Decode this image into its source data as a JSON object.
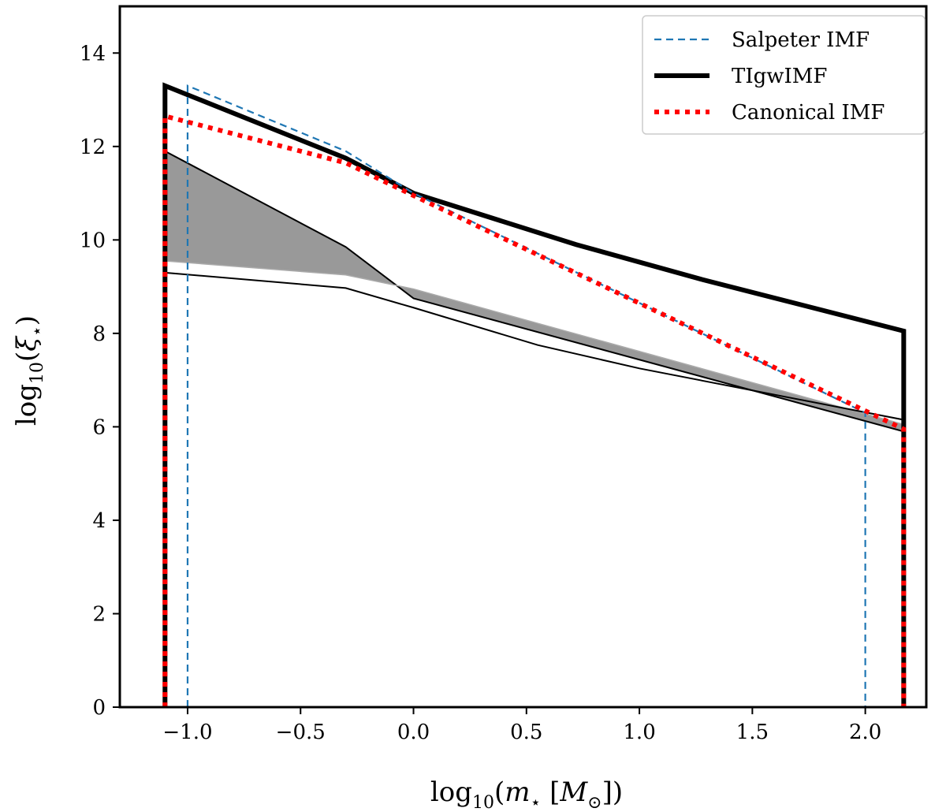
{
  "chart_data": {
    "type": "line",
    "xlabel": "log10(m⋆ [M⊙])",
    "ylabel": "log10(ξ⋆)",
    "xlim": [
      -1.3,
      2.27
    ],
    "ylim": [
      0,
      15
    ],
    "grid": false,
    "legend_position": "top-right",
    "x_ticks": [
      -1.0,
      -0.5,
      0.0,
      0.5,
      1.0,
      1.5,
      2.0
    ],
    "x_tick_labels": [
      "−1.0",
      "−0.5",
      "0.0",
      "0.5",
      "1.0",
      "1.5",
      "2.0"
    ],
    "y_ticks": [
      0,
      2,
      4,
      6,
      8,
      10,
      12,
      14
    ],
    "y_tick_labels": [
      "0",
      "2",
      "4",
      "6",
      "8",
      "10",
      "12",
      "14"
    ],
    "series": [
      {
        "name": "Salpeter IMF",
        "color": "#1f77b4",
        "style": "dashed",
        "points": [
          [
            -1.0,
            0
          ],
          [
            -1.0,
            13.3
          ],
          [
            -0.3,
            11.9
          ],
          [
            0.0,
            11.0
          ],
          [
            2.0,
            6.3
          ],
          [
            2.0,
            0
          ]
        ]
      },
      {
        "name": "TIgwIMF",
        "color": "#000000",
        "style": "solid-thick",
        "points": [
          [
            -1.1,
            0
          ],
          [
            -1.1,
            13.3
          ],
          [
            -0.3,
            11.75
          ],
          [
            0.0,
            11.0
          ],
          [
            0.72,
            9.9
          ],
          [
            1.28,
            9.15
          ],
          [
            2.17,
            8.05
          ],
          [
            2.17,
            0
          ]
        ]
      },
      {
        "name": "Canonical IMF",
        "color": "#ff0000",
        "style": "dotted",
        "points": [
          [
            -1.1,
            0
          ],
          [
            -1.1,
            12.65
          ],
          [
            -0.3,
            11.65
          ],
          [
            0.0,
            10.95
          ],
          [
            2.17,
            5.95
          ],
          [
            2.17,
            0
          ]
        ]
      }
    ],
    "band": {
      "color": "#999999",
      "upper": [
        [
          -1.1,
          11.9
        ],
        [
          -0.3,
          9.85
        ],
        [
          0.0,
          8.75
        ],
        [
          2.17,
          5.9
        ]
      ],
      "lower": [
        [
          -1.1,
          9.55
        ],
        [
          -0.3,
          9.25
        ],
        [
          0.0,
          8.95
        ],
        [
          2.17,
          6.05
        ]
      ]
    },
    "thin_lines": [
      {
        "name": "lower envelope",
        "color": "#000000",
        "points": [
          [
            -1.1,
            9.3
          ],
          [
            -0.3,
            8.97
          ],
          [
            0.0,
            8.55
          ],
          [
            0.55,
            7.75
          ],
          [
            1.0,
            7.25
          ],
          [
            2.17,
            6.15
          ]
        ]
      }
    ],
    "legend": [
      {
        "label": "Salpeter IMF",
        "color": "#1f77b4",
        "style": "dashed"
      },
      {
        "label": "TIgwIMF",
        "color": "#000000",
        "style": "solid-thick"
      },
      {
        "label": "Canonical IMF",
        "color": "#ff0000",
        "style": "dotted"
      }
    ]
  }
}
